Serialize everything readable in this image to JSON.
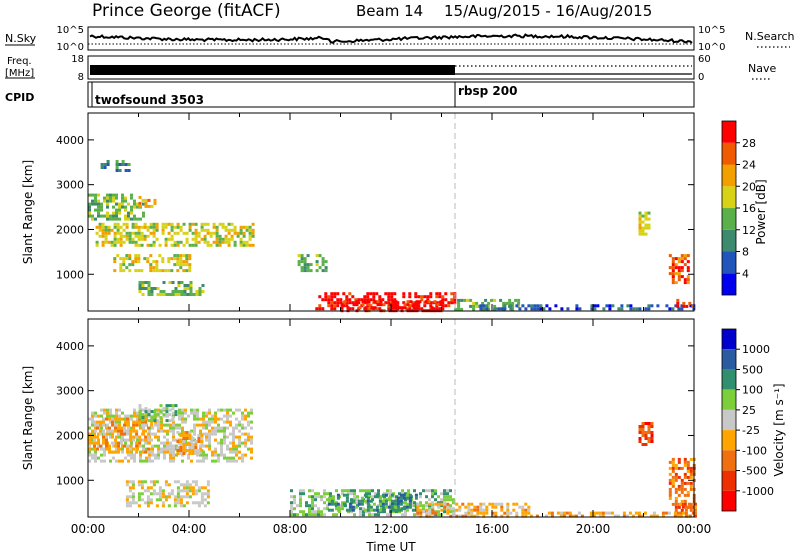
{
  "header": {
    "station": "Prince George (fitACF)",
    "beam": "Beam 14",
    "dates": "15/Aug/2015 - 16/Aug/2015"
  },
  "nsky_panel": {
    "left_label": "N.Sky",
    "left_top_tick": "10^5",
    "left_bottom_tick": "10^0",
    "right_label": "N.Search",
    "right_top_tick": "10^5",
    "right_bottom_tick": "10^0"
  },
  "freq_panel": {
    "left_label_1": "Freq.",
    "left_label_2": "[MHz]",
    "left_top_tick": "18",
    "left_bottom_tick": "8",
    "right_label": "Nave",
    "right_top_tick": "60",
    "right_bottom_tick": "0"
  },
  "cpid_panel": {
    "label": "CPID",
    "segments": [
      {
        "name": "twofsound 3503",
        "start_hour": 0
      },
      {
        "name": "rbsp 200",
        "start_hour": 14.5
      }
    ]
  },
  "chart_data": [
    {
      "type": "heatmap",
      "name": "Power",
      "ylabel": "Slant Range [km]",
      "xlabel": "",
      "xlim": [
        0,
        24
      ],
      "ylim": [
        180,
        4600
      ],
      "yticks": [
        "1000",
        "2000",
        "3000",
        "4000"
      ],
      "colorbar_label": "Power [dB]",
      "colorbar_ticks": [
        "4",
        "8",
        "12",
        "16",
        "20",
        "24",
        "28"
      ],
      "colorbar_colors": [
        "#0000ee",
        "#2255bb",
        "#3d8a6e",
        "#5ab04a",
        "#d7d215",
        "#f1a000",
        "#f05a00",
        "#ff0000"
      ],
      "patches": [
        {
          "t0": 0.5,
          "t1": 1.6,
          "r0": 3300,
          "r1": 3550,
          "level": 2
        },
        {
          "t0": 0.0,
          "t1": 2.2,
          "r0": 2200,
          "r1": 2800,
          "level": 3
        },
        {
          "t0": 0.3,
          "t1": 6.5,
          "r0": 1650,
          "r1": 2150,
          "level": 4
        },
        {
          "t0": 1.0,
          "t1": 4.0,
          "r0": 1050,
          "r1": 1450,
          "level": 4
        },
        {
          "t0": 2.0,
          "t1": 4.5,
          "r0": 550,
          "r1": 850,
          "level": 3
        },
        {
          "t0": 2.0,
          "t1": 2.8,
          "r0": 2500,
          "r1": 2750,
          "level": 5
        },
        {
          "t0": 8.3,
          "t1": 9.4,
          "r0": 1100,
          "r1": 1450,
          "level": 3
        },
        {
          "t0": 9.0,
          "t1": 14.5,
          "r0": 200,
          "r1": 600,
          "level": 7
        },
        {
          "t0": 10.0,
          "t1": 14.0,
          "r0": 200,
          "r1": 420,
          "level": 7
        },
        {
          "t0": 14.5,
          "t1": 17.0,
          "r0": 200,
          "r1": 450,
          "level": 3
        },
        {
          "t0": 15.5,
          "t1": 24.0,
          "r0": 200,
          "r1": 330,
          "level": 1
        },
        {
          "t0": 21.8,
          "t1": 22.2,
          "r0": 1900,
          "r1": 2400,
          "level": 4
        },
        {
          "t0": 23.0,
          "t1": 23.8,
          "r0": 800,
          "r1": 1450,
          "level": 6
        },
        {
          "t0": 23.3,
          "t1": 24.0,
          "r0": 250,
          "r1": 450,
          "level": 7
        }
      ]
    },
    {
      "type": "heatmap",
      "name": "Velocity",
      "ylabel": "Slant Range [km]",
      "xlabel": "Time UT",
      "xlim": [
        0,
        24
      ],
      "ylim": [
        180,
        4600
      ],
      "yticks": [
        "1000",
        "2000",
        "3000",
        "4000"
      ],
      "xticks": [
        "00:00",
        "04:00",
        "08:00",
        "12:00",
        "16:00",
        "20:00",
        "00:00"
      ],
      "colorbar_label": "Velocity [m s⁻¹]",
      "colorbar_ticks": [
        "1000",
        "500",
        "100",
        "25",
        "-25",
        "-100",
        "-500",
        "-1000"
      ],
      "colorbar_colors": [
        "#0000cc",
        "#2a5aa0",
        "#2f8f6e",
        "#7ccf3a",
        "#c8c8c8",
        "#ffa500",
        "#f07010",
        "#ee3000",
        "#ff0000"
      ],
      "patches": [
        {
          "t0": 0.0,
          "t1": 6.5,
          "r0": 1400,
          "r1": 2600,
          "level": 4
        },
        {
          "t0": 0.2,
          "t1": 2.5,
          "r0": 1600,
          "r1": 2400,
          "level": 5
        },
        {
          "t0": 2.0,
          "t1": 3.5,
          "r0": 2300,
          "r1": 2700,
          "level": 3
        },
        {
          "t0": 1.5,
          "t1": 4.8,
          "r0": 400,
          "r1": 1000,
          "level": 4
        },
        {
          "t0": 3.5,
          "t1": 4.5,
          "r0": 1600,
          "r1": 2100,
          "level": 5
        },
        {
          "t0": 8.0,
          "t1": 14.5,
          "r0": 200,
          "r1": 800,
          "level": 3
        },
        {
          "t0": 9.5,
          "t1": 13.0,
          "r0": 300,
          "r1": 700,
          "level": 2
        },
        {
          "t0": 13.0,
          "t1": 17.5,
          "r0": 200,
          "r1": 500,
          "level": 5
        },
        {
          "t0": 17.5,
          "t1": 24.0,
          "r0": 180,
          "r1": 300,
          "level": 5
        },
        {
          "t0": 21.8,
          "t1": 22.3,
          "r0": 1800,
          "r1": 2300,
          "level": 7
        },
        {
          "t0": 23.0,
          "t1": 24.0,
          "r0": 300,
          "r1": 1500,
          "level": 6
        },
        {
          "t0": 23.4,
          "t1": 24.0,
          "r0": 200,
          "r1": 500,
          "level": 6
        }
      ]
    }
  ]
}
